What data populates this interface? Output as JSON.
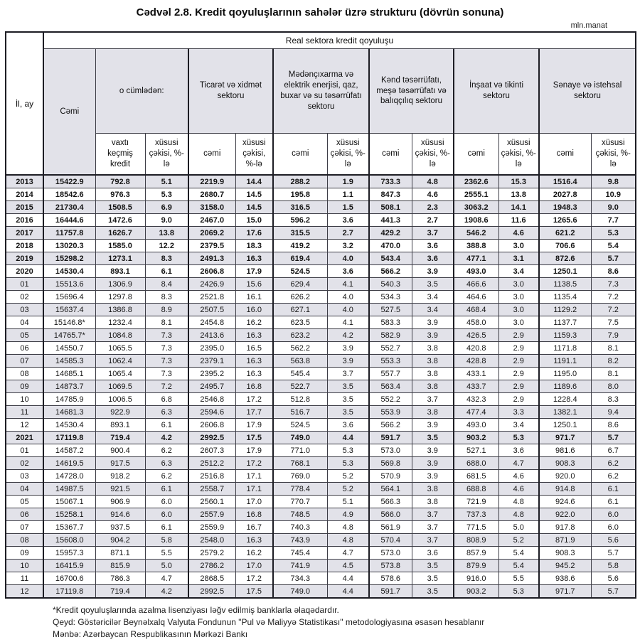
{
  "title": "Cədvəl 2.8. Kredit qoyuluşlarının sahələr üzrə strukturu (dövrün sonuna)",
  "unit": "mln.manat",
  "table": {
    "header": {
      "col_il_ay": "İl, ay",
      "real_sector": "Real sektora kredit qoyuluşu",
      "cemi": "Cəmi",
      "o_cumleden": "o cümlədən:",
      "groups": [
        "Ticarət və xidmət sektoru",
        "Mədənçıxarma və elektrik enerjisi, qaz, buxar və su təsərrüfatı sektoru",
        "Kənd təsərrüfatı, meşə təsərrüfatı və balıqçılıq sektoru",
        "İnşaat və tikinti sektoru",
        "Sənaye və istehsal sektoru"
      ],
      "subcols": [
        "vaxtı keçmiş kredit",
        "xüsusi çəkisi, %-lə",
        "cəmi",
        "xüsusi çəkisi, %-lə",
        "cəmi",
        "xüsusi çəkisi, %-lə",
        "cəmi",
        "xüsusi çəkisi, %-lə",
        "cəmi",
        "xüsusi çəkisi, %-lə",
        "cəmi",
        "xüsusi çəkisi, %-lə"
      ]
    },
    "rows": [
      {
        "label": "2013",
        "bold": true,
        "values": [
          "15422.9",
          "792.8",
          "5.1",
          "2219.9",
          "14.4",
          "288.2",
          "1.9",
          "733.3",
          "4.8",
          "2362.6",
          "15.3",
          "1516.4",
          "9.8"
        ]
      },
      {
        "label": "2014",
        "bold": true,
        "values": [
          "18542.6",
          "976.3",
          "5.3",
          "2680.7",
          "14.5",
          "195.8",
          "1.1",
          "847.3",
          "4.6",
          "2555.1",
          "13.8",
          "2027.8",
          "10.9"
        ]
      },
      {
        "label": "2015",
        "bold": true,
        "values": [
          "21730.4",
          "1508.5",
          "6.9",
          "3158.0",
          "14.5",
          "316.5",
          "1.5",
          "508.1",
          "2.3",
          "3063.2",
          "14.1",
          "1948.3",
          "9.0"
        ]
      },
      {
        "label": "2016",
        "bold": true,
        "values": [
          "16444.6",
          "1472.6",
          "9.0",
          "2467.0",
          "15.0",
          "596.2",
          "3.6",
          "441.3",
          "2.7",
          "1908.6",
          "11.6",
          "1265.6",
          "7.7"
        ]
      },
      {
        "label": "2017",
        "bold": true,
        "values": [
          "11757.8",
          "1626.7",
          "13.8",
          "2069.2",
          "17.6",
          "315.5",
          "2.7",
          "429.2",
          "3.7",
          "546.2",
          "4.6",
          "621.2",
          "5.3"
        ]
      },
      {
        "label": "2018",
        "bold": true,
        "values": [
          "13020.3",
          "1585.0",
          "12.2",
          "2379.5",
          "18.3",
          "419.2",
          "3.2",
          "470.0",
          "3.6",
          "388.8",
          "3.0",
          "706.6",
          "5.4"
        ]
      },
      {
        "label": "2019",
        "bold": true,
        "values": [
          "15298.2",
          "1273.1",
          "8.3",
          "2491.3",
          "16.3",
          "619.4",
          "4.0",
          "543.4",
          "3.6",
          "477.1",
          "3.1",
          "872.6",
          "5.7"
        ]
      },
      {
        "label": "2020",
        "bold": true,
        "values": [
          "14530.4",
          "893.1",
          "6.1",
          "2606.8",
          "17.9",
          "524.5",
          "3.6",
          "566.2",
          "3.9",
          "493.0",
          "3.4",
          "1250.1",
          "8.6"
        ]
      },
      {
        "label": "01",
        "bold": false,
        "values": [
          "15513.6",
          "1306.9",
          "8.4",
          "2426.9",
          "15.6",
          "629.4",
          "4.1",
          "540.3",
          "3.5",
          "466.6",
          "3.0",
          "1138.5",
          "7.3"
        ]
      },
      {
        "label": "02",
        "bold": false,
        "values": [
          "15696.4",
          "1297.8",
          "8.3",
          "2521.8",
          "16.1",
          "626.2",
          "4.0",
          "534.3",
          "3.4",
          "464.6",
          "3.0",
          "1135.4",
          "7.2"
        ]
      },
      {
        "label": "03",
        "bold": false,
        "values": [
          "15637.4",
          "1386.8",
          "8.9",
          "2507.5",
          "16.0",
          "627.1",
          "4.0",
          "527.5",
          "3.4",
          "468.4",
          "3.0",
          "1129.2",
          "7.2"
        ]
      },
      {
        "label": "04",
        "bold": false,
        "values": [
          "15146.8*",
          "1232.4",
          "8.1",
          "2454.8",
          "16.2",
          "623.5",
          "4.1",
          "583.3",
          "3.9",
          "458.0",
          "3.0",
          "1137.7",
          "7.5"
        ]
      },
      {
        "label": "05",
        "bold": false,
        "values": [
          "14765.7*",
          "1084.8",
          "7.3",
          "2413.6",
          "16.3",
          "623.2",
          "4.2",
          "582.9",
          "3.9",
          "426.5",
          "2.9",
          "1159.3",
          "7.9"
        ]
      },
      {
        "label": "06",
        "bold": false,
        "values": [
          "14550.7",
          "1065.5",
          "7.3",
          "2395.0",
          "16.5",
          "562.2",
          "3.9",
          "552.7",
          "3.8",
          "420.8",
          "2.9",
          "1171.8",
          "8.1"
        ]
      },
      {
        "label": "07",
        "bold": false,
        "values": [
          "14585.3",
          "1062.4",
          "7.3",
          "2379.1",
          "16.3",
          "563.8",
          "3.9",
          "553.3",
          "3.8",
          "428.8",
          "2.9",
          "1191.1",
          "8.2"
        ]
      },
      {
        "label": "08",
        "bold": false,
        "values": [
          "14685.1",
          "1065.4",
          "7.3",
          "2395.2",
          "16.3",
          "545.4",
          "3.7",
          "557.7",
          "3.8",
          "433.1",
          "2.9",
          "1195.0",
          "8.1"
        ]
      },
      {
        "label": "09",
        "bold": false,
        "values": [
          "14873.7",
          "1069.5",
          "7.2",
          "2495.7",
          "16.8",
          "522.7",
          "3.5",
          "563.4",
          "3.8",
          "433.7",
          "2.9",
          "1189.6",
          "8.0"
        ]
      },
      {
        "label": "10",
        "bold": false,
        "values": [
          "14785.9",
          "1006.5",
          "6.8",
          "2546.8",
          "17.2",
          "512.8",
          "3.5",
          "552.2",
          "3.7",
          "432.3",
          "2.9",
          "1228.4",
          "8.3"
        ]
      },
      {
        "label": "11",
        "bold": false,
        "values": [
          "14681.3",
          "922.9",
          "6.3",
          "2594.6",
          "17.7",
          "516.7",
          "3.5",
          "553.9",
          "3.8",
          "477.4",
          "3.3",
          "1382.1",
          "9.4"
        ]
      },
      {
        "label": "12",
        "bold": false,
        "values": [
          "14530.4",
          "893.1",
          "6.1",
          "2606.8",
          "17.9",
          "524.5",
          "3.6",
          "566.2",
          "3.9",
          "493.0",
          "3.4",
          "1250.1",
          "8.6"
        ]
      },
      {
        "label": "2021",
        "bold": true,
        "values": [
          "17119.8",
          "719.4",
          "4.2",
          "2992.5",
          "17.5",
          "749.0",
          "4.4",
          "591.7",
          "3.5",
          "903.2",
          "5.3",
          "971.7",
          "5.7"
        ]
      },
      {
        "label": "01",
        "bold": false,
        "values": [
          "14587.2",
          "900.4",
          "6.2",
          "2607.3",
          "17.9",
          "771.0",
          "5.3",
          "573.0",
          "3.9",
          "527.1",
          "3.6",
          "981.6",
          "6.7"
        ]
      },
      {
        "label": "02",
        "bold": false,
        "values": [
          "14619.5",
          "917.5",
          "6.3",
          "2512.2",
          "17.2",
          "768.1",
          "5.3",
          "569.8",
          "3.9",
          "688.0",
          "4.7",
          "908.3",
          "6.2"
        ]
      },
      {
        "label": "03",
        "bold": false,
        "values": [
          "14728.0",
          "918.2",
          "6.2",
          "2516.8",
          "17.1",
          "769.0",
          "5.2",
          "570.9",
          "3.9",
          "681.5",
          "4.6",
          "920.0",
          "6.2"
        ]
      },
      {
        "label": "04",
        "bold": false,
        "values": [
          "14987.5",
          "921.5",
          "6.1",
          "2558.7",
          "17.1",
          "778.4",
          "5.2",
          "564.1",
          "3.8",
          "688.8",
          "4.6",
          "914.8",
          "6.1"
        ]
      },
      {
        "label": "05",
        "bold": false,
        "values": [
          "15067.1",
          "906.9",
          "6.0",
          "2560.1",
          "17.0",
          "770.7",
          "5.1",
          "566.3",
          "3.8",
          "721.9",
          "4.8",
          "924.6",
          "6.1"
        ]
      },
      {
        "label": "06",
        "bold": false,
        "values": [
          "15258.1",
          "914.6",
          "6.0",
          "2557.9",
          "16.8",
          "748.5",
          "4.9",
          "566.0",
          "3.7",
          "737.3",
          "4.8",
          "922.0",
          "6.0"
        ]
      },
      {
        "label": "07",
        "bold": false,
        "values": [
          "15367.7",
          "937.5",
          "6.1",
          "2559.9",
          "16.7",
          "740.3",
          "4.8",
          "561.9",
          "3.7",
          "771.5",
          "5.0",
          "917.8",
          "6.0"
        ]
      },
      {
        "label": "08",
        "bold": false,
        "values": [
          "15608.0",
          "904.2",
          "5.8",
          "2548.0",
          "16.3",
          "743.9",
          "4.8",
          "570.4",
          "3.7",
          "808.9",
          "5.2",
          "871.9",
          "5.6"
        ]
      },
      {
        "label": "09",
        "bold": false,
        "values": [
          "15957.3",
          "871.1",
          "5.5",
          "2579.2",
          "16.2",
          "745.4",
          "4.7",
          "573.0",
          "3.6",
          "857.9",
          "5.4",
          "908.3",
          "5.7"
        ]
      },
      {
        "label": "10",
        "bold": false,
        "values": [
          "16415.9",
          "815.9",
          "5.0",
          "2786.2",
          "17.0",
          "741.9",
          "4.5",
          "573.8",
          "3.5",
          "879.9",
          "5.4",
          "945.2",
          "5.8"
        ]
      },
      {
        "label": "11",
        "bold": false,
        "values": [
          "16700.6",
          "786.3",
          "4.7",
          "2868.5",
          "17.2",
          "734.3",
          "4.4",
          "578.6",
          "3.5",
          "916.0",
          "5.5",
          "938.6",
          "5.6"
        ]
      },
      {
        "label": "12",
        "bold": false,
        "values": [
          "17119.8",
          "719.4",
          "4.2",
          "2992.5",
          "17.5",
          "749.0",
          "4.4",
          "591.7",
          "3.5",
          "903.2",
          "5.3",
          "971.7",
          "5.7"
        ]
      }
    ]
  },
  "footnotes": [
    "*Kredit qoyuluşlarında azalma lisenziyası ləğv edilmiş banklarla əlaqədardır.",
    "Qeyd: Göstəricilər Beynəlxalq Valyuta Fondunun \"Pul və Maliyyə Statistikası\" metodologiyasına əsasən hesablanır",
    "Mənbə: Azərbaycan Respublikasının Mərkəzi Bankı"
  ]
}
